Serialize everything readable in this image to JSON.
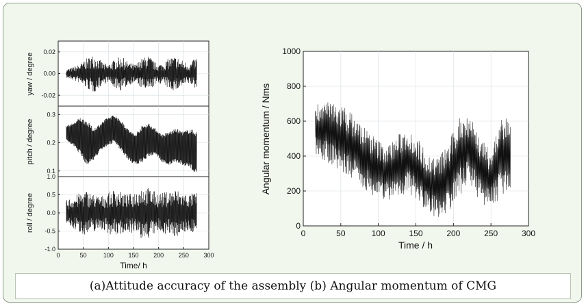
{
  "caption": "(a)Attitude accuracy of the assembly (b) Angular momentum of CMG",
  "chart_data": [
    {
      "type": "line",
      "panel": "a-top",
      "ylabel": "yaw / degree",
      "xlim": [
        0,
        300
      ],
      "ylim": [
        -0.03,
        0.03
      ],
      "yticks": [
        -0.02,
        0.0,
        0.02
      ],
      "ytick_labels": [
        "-0.02",
        "0.00",
        "0.02"
      ],
      "series": [
        {
          "x_range": [
            16,
            276
          ],
          "center": 0.0,
          "envelope": [
            0.004,
            0.006,
            0.009,
            0.014,
            0.018,
            0.012,
            0.008,
            0.013,
            0.016,
            0.011,
            0.008,
            0.014,
            0.017,
            0.01,
            0.009,
            0.015,
            0.016,
            0.012,
            0.009,
            0.016
          ]
        }
      ]
    },
    {
      "type": "line",
      "panel": "a-middle",
      "ylabel": "pitch / degree",
      "xlim": [
        0,
        300
      ],
      "ylim": [
        0.08,
        0.33
      ],
      "yticks": [
        0.1,
        0.2,
        0.3
      ],
      "ytick_labels": [
        "0.1",
        "0.2",
        "0.3"
      ],
      "series": [
        {
          "x_range": [
            16,
            276
          ],
          "upper": [
            0.26,
            0.27,
            0.29,
            0.28,
            0.25,
            0.27,
            0.29,
            0.3,
            0.28,
            0.25,
            0.23,
            0.26,
            0.27,
            0.25,
            0.23,
            0.24,
            0.25,
            0.24,
            0.25,
            0.24
          ],
          "lower": [
            0.21,
            0.19,
            0.16,
            0.12,
            0.14,
            0.17,
            0.19,
            0.2,
            0.17,
            0.14,
            0.12,
            0.13,
            0.15,
            0.16,
            0.13,
            0.12,
            0.13,
            0.12,
            0.11,
            0.09
          ]
        }
      ]
    },
    {
      "type": "line",
      "panel": "a-bottom",
      "ylabel": "roll / degree",
      "xlabel": "Time/ h",
      "xlim": [
        0,
        300
      ],
      "ylim": [
        -1.0,
        1.0
      ],
      "xticks": [
        0,
        50,
        100,
        150,
        200,
        250,
        300
      ],
      "xtick_labels": [
        "0",
        "50",
        "100",
        "150",
        "200",
        "250",
        "300"
      ],
      "yticks": [
        -1.0,
        -0.5,
        0.0,
        0.5,
        1.0
      ],
      "ytick_labels": [
        "-1.0",
        "-0.5",
        "0.0",
        "0.5",
        "1.0"
      ],
      "series": [
        {
          "x_range": [
            16,
            276
          ],
          "center": 0.0,
          "envelope": [
            0.35,
            0.45,
            0.55,
            0.62,
            0.52,
            0.45,
            0.55,
            0.65,
            0.58,
            0.5,
            0.6,
            0.75,
            0.7,
            0.58,
            0.55,
            0.62,
            0.66,
            0.55,
            0.52,
            0.58
          ]
        }
      ]
    },
    {
      "type": "line",
      "panel": "b",
      "xlabel": "Time / h",
      "ylabel": "Angular momentum / Nms",
      "xlim": [
        0,
        300
      ],
      "ylim": [
        0,
        1000
      ],
      "xticks": [
        0,
        50,
        100,
        150,
        200,
        250,
        300
      ],
      "xtick_labels": [
        "0",
        "50",
        "100",
        "150",
        "200",
        "250",
        "300"
      ],
      "yticks": [
        0,
        200,
        400,
        600,
        800,
        1000
      ],
      "ytick_labels": [
        "0",
        "200",
        "400",
        "600",
        "800",
        "1000"
      ],
      "series": [
        {
          "x_range": [
            16,
            276
          ],
          "mid": [
            560,
            540,
            520,
            480,
            430,
            380,
            330,
            300,
            340,
            380,
            320,
            240,
            220,
            280,
            400,
            450,
            330,
            260,
            380,
            430
          ],
          "amp": [
            150,
            170,
            190,
            200,
            190,
            180,
            170,
            160,
            180,
            190,
            180,
            170,
            180,
            200,
            230,
            210,
            190,
            170,
            220,
            230
          ]
        }
      ]
    }
  ]
}
